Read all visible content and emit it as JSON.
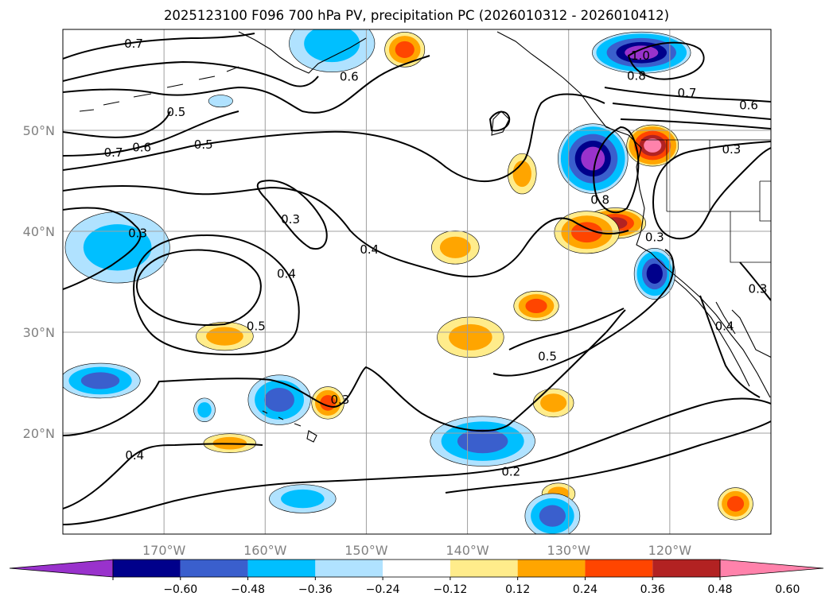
{
  "title": "2025123100 F096 700 hPa PV, precipitation PC (2026010312 - 2026010412)",
  "chart_data": {
    "type": "heatmap",
    "title": "2025123100 F096 700 hPa PV, precipitation PC (2026010312 - 2026010412)",
    "map_extent": {
      "lon": [
        -180,
        -110
      ],
      "lat": [
        10,
        60
      ]
    },
    "lat_ticks": [
      {
        "value": 20,
        "label": "20°N"
      },
      {
        "value": 30,
        "label": "30°N"
      },
      {
        "value": 40,
        "label": "40°N"
      },
      {
        "value": 50,
        "label": "50°N"
      }
    ],
    "lon_ticks": [
      {
        "value": -170,
        "label": "170°W"
      },
      {
        "value": -160,
        "label": "160°W"
      },
      {
        "value": -150,
        "label": "150°W"
      },
      {
        "value": -140,
        "label": "140°W"
      },
      {
        "value": -130,
        "label": "130°W"
      },
      {
        "value": -120,
        "label": "120°W"
      }
    ],
    "colorbar": {
      "levels": [
        -0.6,
        -0.48,
        -0.36,
        -0.24,
        -0.12,
        0.12,
        0.24,
        0.36,
        0.48,
        0.6
      ],
      "tick_labels": [
        "−0.60",
        "−0.48",
        "−0.36",
        "−0.24",
        "−0.12",
        "0.12",
        "0.24",
        "0.36",
        "0.48",
        "0.60"
      ],
      "colors": [
        "#9932cc",
        "#00008b",
        "#3a5fcd",
        "#00bfff",
        "#b0e2ff",
        "#ffffff",
        "#ffec8b",
        "#ffa500",
        "#ff4500",
        "#b22222",
        "#ff82ab"
      ],
      "extend": "both"
    },
    "pv_contour_labels": [
      {
        "text": "0.7",
        "lon": -173,
        "lat": 58.6
      },
      {
        "text": "0.6",
        "lon": -151.7,
        "lat": 55.3
      },
      {
        "text": "0.5",
        "lon": -168.8,
        "lat": 51.8
      },
      {
        "text": "0.7",
        "lon": -175,
        "lat": 47.8
      },
      {
        "text": "0.6",
        "lon": -172.2,
        "lat": 48.3
      },
      {
        "text": "0.5",
        "lon": -166.1,
        "lat": 48.6
      },
      {
        "text": "0.3",
        "lon": -157.5,
        "lat": 41.2
      },
      {
        "text": "0.3",
        "lon": -172.6,
        "lat": 39.8
      },
      {
        "text": "0.4",
        "lon": -149.7,
        "lat": 38.2
      },
      {
        "text": "0.4",
        "lon": -157.9,
        "lat": 35.8
      },
      {
        "text": "0.5",
        "lon": -160.9,
        "lat": 30.6
      },
      {
        "text": "0.3",
        "lon": -152.6,
        "lat": 23.3
      },
      {
        "text": "0.5",
        "lon": -132.1,
        "lat": 27.6
      },
      {
        "text": "0.2",
        "lon": -135.7,
        "lat": 16.2
      },
      {
        "text": "0.4",
        "lon": -172.9,
        "lat": 17.8
      },
      {
        "text": "0.8",
        "lon": -126.9,
        "lat": 43.1
      },
      {
        "text": "1.0",
        "lon": -122.9,
        "lat": 57.4
      },
      {
        "text": "0.8",
        "lon": -123.3,
        "lat": 55.4
      },
      {
        "text": "0.7",
        "lon": -118.3,
        "lat": 53.7
      },
      {
        "text": "0.6",
        "lon": -112.2,
        "lat": 52.5
      },
      {
        "text": "0.3",
        "lon": -121.5,
        "lat": 39.4
      },
      {
        "text": "0.3",
        "lon": -113.9,
        "lat": 48.1
      },
      {
        "text": "0.3",
        "lon": -111.3,
        "lat": 34.3
      },
      {
        "text": "0.4",
        "lon": -114.6,
        "lat": 30.6
      }
    ],
    "precip_anomaly_blobs": [
      {
        "lon": -121.7,
        "lat": 48.5,
        "value": 0.6,
        "rx": 2.0,
        "ry": 1.6
      },
      {
        "lon": -125.4,
        "lat": 40.8,
        "value": 0.48,
        "rx": 2.4,
        "ry": 1.2
      },
      {
        "lon": -128.2,
        "lat": 39.9,
        "value": 0.36,
        "rx": 2.6,
        "ry": 1.7
      },
      {
        "lon": -133.2,
        "lat": 32.6,
        "value": 0.36,
        "rx": 1.8,
        "ry": 1.2
      },
      {
        "lon": -139.7,
        "lat": 29.5,
        "value": 0.24,
        "rx": 2.8,
        "ry": 1.7
      },
      {
        "lon": -146.2,
        "lat": 58.0,
        "value": 0.36,
        "rx": 1.6,
        "ry": 1.4
      },
      {
        "lon": -141.2,
        "lat": 38.4,
        "value": 0.24,
        "rx": 2.0,
        "ry": 1.4
      },
      {
        "lon": -134.6,
        "lat": 45.7,
        "value": 0.24,
        "rx": 1.2,
        "ry": 1.7
      },
      {
        "lon": -164.0,
        "lat": 29.6,
        "value": 0.24,
        "rx": 2.4,
        "ry": 1.2
      },
      {
        "lon": -153.8,
        "lat": 23.0,
        "value": 0.36,
        "rx": 1.3,
        "ry": 1.3
      },
      {
        "lon": -163.5,
        "lat": 19.0,
        "value": 0.24,
        "rx": 2.2,
        "ry": 0.8
      },
      {
        "lon": -131.5,
        "lat": 23.0,
        "value": 0.24,
        "rx": 1.7,
        "ry": 1.2
      },
      {
        "lon": -131.0,
        "lat": 14.0,
        "value": 0.24,
        "rx": 1.4,
        "ry": 0.9
      },
      {
        "lon": -113.5,
        "lat": 13.0,
        "value": 0.36,
        "rx": 1.4,
        "ry": 1.3
      },
      {
        "lon": -127.6,
        "lat": 47.2,
        "value": -0.6,
        "rx": 2.7,
        "ry": 2.7
      },
      {
        "lon": -122.8,
        "lat": 57.7,
        "value": -0.6,
        "rx": 3.8,
        "ry": 1.6
      },
      {
        "lon": -121.5,
        "lat": 35.8,
        "value": -0.48,
        "rx": 1.6,
        "ry": 2.0
      },
      {
        "lon": -138.5,
        "lat": 19.2,
        "value": -0.36,
        "rx": 4.2,
        "ry": 2.0
      },
      {
        "lon": -158.6,
        "lat": 23.3,
        "value": -0.36,
        "rx": 2.5,
        "ry": 2.0
      },
      {
        "lon": -131.6,
        "lat": 11.8,
        "value": -0.36,
        "rx": 2.2,
        "ry": 1.8
      },
      {
        "lon": -176.3,
        "lat": 25.2,
        "value": -0.36,
        "rx": 3.2,
        "ry": 1.4
      },
      {
        "lon": -174.6,
        "lat": 38.4,
        "value": -0.24,
        "rx": 4.4,
        "ry": 3.0
      },
      {
        "lon": -156.3,
        "lat": 13.5,
        "value": -0.24,
        "rx": 2.8,
        "ry": 1.2
      },
      {
        "lon": -153.4,
        "lat": 58.6,
        "value": -0.24,
        "rx": 3.6,
        "ry": 2.4
      },
      {
        "lon": -164.4,
        "lat": 52.9,
        "value": -0.12,
        "rx": 1.2,
        "ry": 0.6
      },
      {
        "lon": -166.0,
        "lat": 22.3,
        "value": -0.24,
        "rx": 0.9,
        "ry": 1.0
      }
    ]
  }
}
